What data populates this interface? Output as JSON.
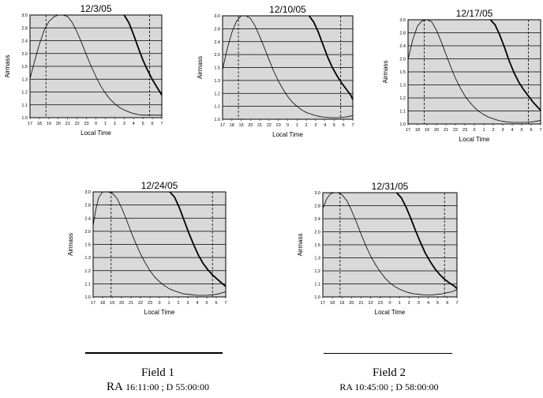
{
  "charts": [
    {
      "title": "12/3/05",
      "ylabel": "Airmass",
      "xlabel": "Local Time",
      "yticks": [
        "1.0",
        "1.1",
        "1.2",
        "1.3",
        "1.5",
        "2.0",
        "2.4",
        "2.8",
        "3.0"
      ]
    },
    {
      "title": "12/10/05",
      "ylabel": "Airmass",
      "xlabel": "Local Time",
      "yticks": [
        "1.0",
        "1.1",
        "1.2",
        "1.3",
        "1.5",
        "2.0",
        "2.4",
        "2.8",
        "3.0"
      ]
    },
    {
      "title": "12/17/05",
      "ylabel": "Airmass",
      "xlabel": "Local Time",
      "yticks": [
        "1.0",
        "1.1",
        "1.2",
        "1.3",
        "1.5",
        "2.0",
        "2.4",
        "2.8",
        "3.0"
      ]
    },
    {
      "title": "12/24/05",
      "ylabel": "Airmass",
      "xlabel": "Local Time",
      "yticks": [
        "1.0",
        "1.1",
        "1.2",
        "1.3",
        "1.5",
        "2.0",
        "2.4",
        "2.8",
        "3.0"
      ]
    },
    {
      "title": "12/31/05",
      "ylabel": "Airmass",
      "xlabel": "Local Time",
      "yticks": [
        "1.0",
        "1.1",
        "1.2",
        "1.3",
        "1.5",
        "2.0",
        "2.4",
        "2.8",
        "3.0"
      ]
    }
  ],
  "xticks": [
    "17",
    "18",
    "19",
    "20",
    "21",
    "22",
    "23",
    "0",
    "1",
    "2",
    "3",
    "4",
    "5",
    "6",
    "7"
  ],
  "fields": [
    {
      "title": "Field 1",
      "ra_prefix": "RA",
      "ra": "16:11:00 ; D 55:00:00"
    },
    {
      "title": "Field 2",
      "ra_prefix": "",
      "ra": "RA 10:45:00 ; D 58:00:00"
    }
  ],
  "chart_data": [
    {
      "type": "line",
      "title": "12/3/05",
      "xlabel": "Local Time",
      "ylabel": "Airmass",
      "xlim": [
        17,
        31
      ],
      "ylim": [
        1.0,
        3.0
      ],
      "grid": true,
      "twilight": [
        18.7,
        29.7
      ],
      "series": [
        {
          "style": "thick",
          "x": [
            17,
            17.5,
            18,
            18.5,
            19,
            19.5,
            20,
            20.5,
            21,
            21.5,
            22,
            22.5,
            23,
            23.5,
            24,
            24.5,
            25,
            25.5,
            26,
            26.5,
            27,
            27.5,
            28,
            28.5,
            29,
            29.5,
            30,
            30.5,
            31
          ],
          "y": [
            1.76,
            2.11,
            2.43,
            2.7,
            2.87,
            2.96,
            3.0,
            3.0,
            2.97,
            2.85,
            2.67,
            2.45,
            2.22,
            2.0,
            1.8,
            1.62,
            1.48,
            1.36,
            1.27,
            1.2,
            1.15,
            1.11,
            1.08,
            1.06,
            1.05,
            1.05,
            1.05,
            1.05,
            1.05
          ]
        },
        {
          "style": "thick",
          "x": [
            27,
            27.5,
            28,
            28.5,
            29,
            29.5,
            30,
            30.5,
            31
          ],
          "y": [
            3.0,
            2.85,
            2.62,
            2.36,
            2.12,
            1.92,
            1.74,
            1.59,
            1.44
          ]
        }
      ]
    },
    {
      "type": "line",
      "title": "12/10/05",
      "xlabel": "Local Time",
      "ylabel": "Airmass",
      "xlim": [
        17,
        31
      ],
      "ylim": [
        1.0,
        3.0
      ],
      "grid": true,
      "twilight": [
        18.7,
        29.7
      ],
      "series": [
        {
          "style": "thick",
          "x": [
            17,
            17.5,
            18,
            18.5,
            19,
            19.5,
            20,
            20.5,
            21,
            21.5,
            22,
            22.5,
            23,
            23.5,
            24,
            24.5,
            25,
            25.5,
            26,
            26.5,
            27,
            27.5,
            28,
            28.5,
            29,
            29.5,
            30,
            30.5,
            31
          ],
          "y": [
            1.96,
            2.36,
            2.68,
            2.9,
            3.0,
            3.0,
            2.95,
            2.8,
            2.6,
            2.38,
            2.15,
            1.93,
            1.74,
            1.58,
            1.44,
            1.33,
            1.25,
            1.18,
            1.13,
            1.1,
            1.07,
            1.05,
            1.04,
            1.03,
            1.03,
            1.03,
            1.04,
            1.05,
            1.07
          ]
        },
        {
          "style": "thick",
          "x": [
            26.3,
            26.8,
            27.3,
            27.8,
            28.3,
            28.8,
            29.3,
            29.8,
            30.3,
            30.8,
            31
          ],
          "y": [
            3.0,
            2.88,
            2.68,
            2.44,
            2.2,
            2.0,
            1.84,
            1.7,
            1.58,
            1.46,
            1.38
          ]
        }
      ]
    },
    {
      "type": "line",
      "title": "12/17/05",
      "xlabel": "Local Time",
      "ylabel": "Airmass",
      "xlim": [
        17,
        31
      ],
      "ylim": [
        1.0,
        3.0
      ],
      "grid": true,
      "twilight": [
        18.7,
        29.7
      ],
      "series": [
        {
          "style": "thick",
          "x": [
            17,
            17.5,
            18,
            18.5,
            19,
            19.5,
            20,
            20.5,
            21,
            21.5,
            22,
            22.5,
            23,
            23.5,
            24,
            24.5,
            25,
            25.5,
            26,
            26.5,
            27,
            27.5,
            28,
            28.5,
            29,
            29.5,
            30,
            30.5,
            31
          ],
          "y": [
            2.24,
            2.62,
            2.88,
            2.98,
            3.0,
            2.96,
            2.8,
            2.58,
            2.34,
            2.1,
            1.88,
            1.7,
            1.54,
            1.42,
            1.32,
            1.24,
            1.18,
            1.13,
            1.1,
            1.07,
            1.05,
            1.04,
            1.03,
            1.03,
            1.03,
            1.03,
            1.04,
            1.05,
            1.07
          ]
        },
        {
          "style": "thick",
          "x": [
            25.7,
            26.2,
            26.7,
            27.2,
            27.7,
            28.2,
            28.7,
            29.2,
            29.7,
            30.2,
            30.7,
            31
          ],
          "y": [
            3.0,
            2.9,
            2.7,
            2.46,
            2.2,
            1.98,
            1.8,
            1.66,
            1.54,
            1.42,
            1.32,
            1.26
          ]
        }
      ]
    },
    {
      "type": "line",
      "title": "12/24/05",
      "xlabel": "Local Time",
      "ylabel": "Airmass",
      "xlim": [
        17,
        31
      ],
      "ylim": [
        1.0,
        3.0
      ],
      "grid": true,
      "twilight": [
        18.9,
        29.6
      ],
      "series": [
        {
          "style": "thick",
          "x": [
            17,
            17.3,
            17.6,
            18,
            18.5,
            19,
            19.5,
            20,
            20.5,
            21,
            21.5,
            22,
            22.5,
            23,
            23.5,
            24,
            24.5,
            25,
            25.5,
            26,
            26.5,
            27,
            27.5,
            28,
            28.5,
            29,
            29.5,
            30,
            30.5,
            31
          ],
          "y": [
            2.36,
            2.68,
            2.9,
            3.0,
            3.0,
            2.98,
            2.88,
            2.7,
            2.48,
            2.24,
            2.02,
            1.82,
            1.65,
            1.5,
            1.38,
            1.29,
            1.22,
            1.16,
            1.12,
            1.09,
            1.06,
            1.05,
            1.04,
            1.03,
            1.03,
            1.03,
            1.04,
            1.05,
            1.07,
            1.1
          ]
        },
        {
          "style": "thick",
          "x": [
            25.1,
            25.6,
            26.1,
            26.6,
            27.1,
            27.6,
            28.1,
            28.6,
            29.1,
            29.6,
            30.1,
            30.6,
            31
          ],
          "y": [
            3.0,
            2.9,
            2.7,
            2.46,
            2.22,
            2.0,
            1.8,
            1.64,
            1.52,
            1.42,
            1.34,
            1.26,
            1.2
          ]
        }
      ]
    },
    {
      "type": "line",
      "title": "12/31/05",
      "xlabel": "Local Time",
      "ylabel": "Airmass",
      "xlim": [
        17,
        31
      ],
      "ylim": [
        1.0,
        3.0
      ],
      "grid": true,
      "twilight": [
        18.8,
        29.7
      ],
      "series": [
        {
          "style": "thick",
          "x": [
            17,
            17.4,
            17.8,
            18.2,
            18.6,
            19,
            19.5,
            20,
            20.5,
            21,
            21.5,
            22,
            22.5,
            23,
            23.5,
            24,
            24.5,
            25,
            25.5,
            26,
            26.5,
            27,
            27.5,
            28,
            28.5,
            29,
            29.5,
            30,
            30.5,
            31
          ],
          "y": [
            2.7,
            2.88,
            2.98,
            3.0,
            3.0,
            2.96,
            2.85,
            2.66,
            2.44,
            2.2,
            1.98,
            1.78,
            1.62,
            1.48,
            1.36,
            1.27,
            1.2,
            1.15,
            1.11,
            1.08,
            1.06,
            1.05,
            1.04,
            1.04,
            1.04,
            1.05,
            1.06,
            1.08,
            1.1,
            1.14
          ]
        },
        {
          "style": "thick",
          "x": [
            24.7,
            25.2,
            25.7,
            26.2,
            26.7,
            27.2,
            27.7,
            28.2,
            28.7,
            29.2,
            29.7,
            30.2,
            30.7,
            31
          ],
          "y": [
            3.0,
            2.9,
            2.72,
            2.5,
            2.26,
            2.04,
            1.84,
            1.68,
            1.54,
            1.43,
            1.34,
            1.27,
            1.21,
            1.16
          ]
        }
      ]
    }
  ]
}
